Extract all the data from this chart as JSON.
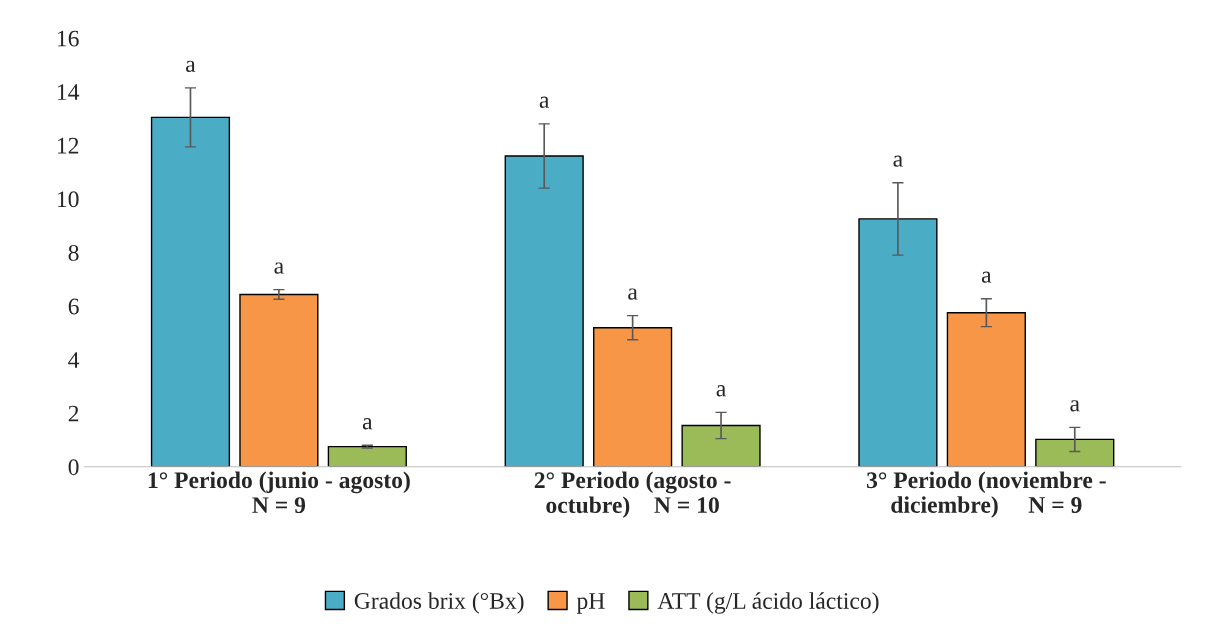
{
  "chart_data": {
    "type": "bar",
    "categories": [
      "1° Periodo (junio - agosto)\nN = 9",
      "2° Periodo (agosto -\noctubre)    N = 10",
      "3° Periodo (noviembre -\ndiciembre)     N = 9"
    ],
    "series": [
      {
        "name": "Grados brix (°Bx)",
        "color": "#4bacc6",
        "values": [
          13.04,
          11.6,
          9.25
        ],
        "errors": [
          1.1,
          1.2,
          1.35
        ]
      },
      {
        "name": "pH",
        "color": "#f79646",
        "values": [
          6.43,
          5.19,
          5.75
        ],
        "errors": [
          0.18,
          0.45,
          0.52
        ]
      },
      {
        "name": "ATT (g/L ácido láctico)",
        "color": "#9bbb59",
        "values": [
          0.75,
          1.54,
          1.02
        ],
        "errors": [
          0.05,
          0.49,
          0.45
        ]
      }
    ],
    "ylim": [
      0,
      16
    ],
    "yticks": [
      0,
      2,
      4,
      6,
      8,
      10,
      12,
      14,
      16
    ],
    "grid": false,
    "legend": "bottom",
    "annotations": [
      "a",
      "a",
      "a",
      "a",
      "a",
      "a",
      "a",
      "a",
      "a"
    ]
  }
}
